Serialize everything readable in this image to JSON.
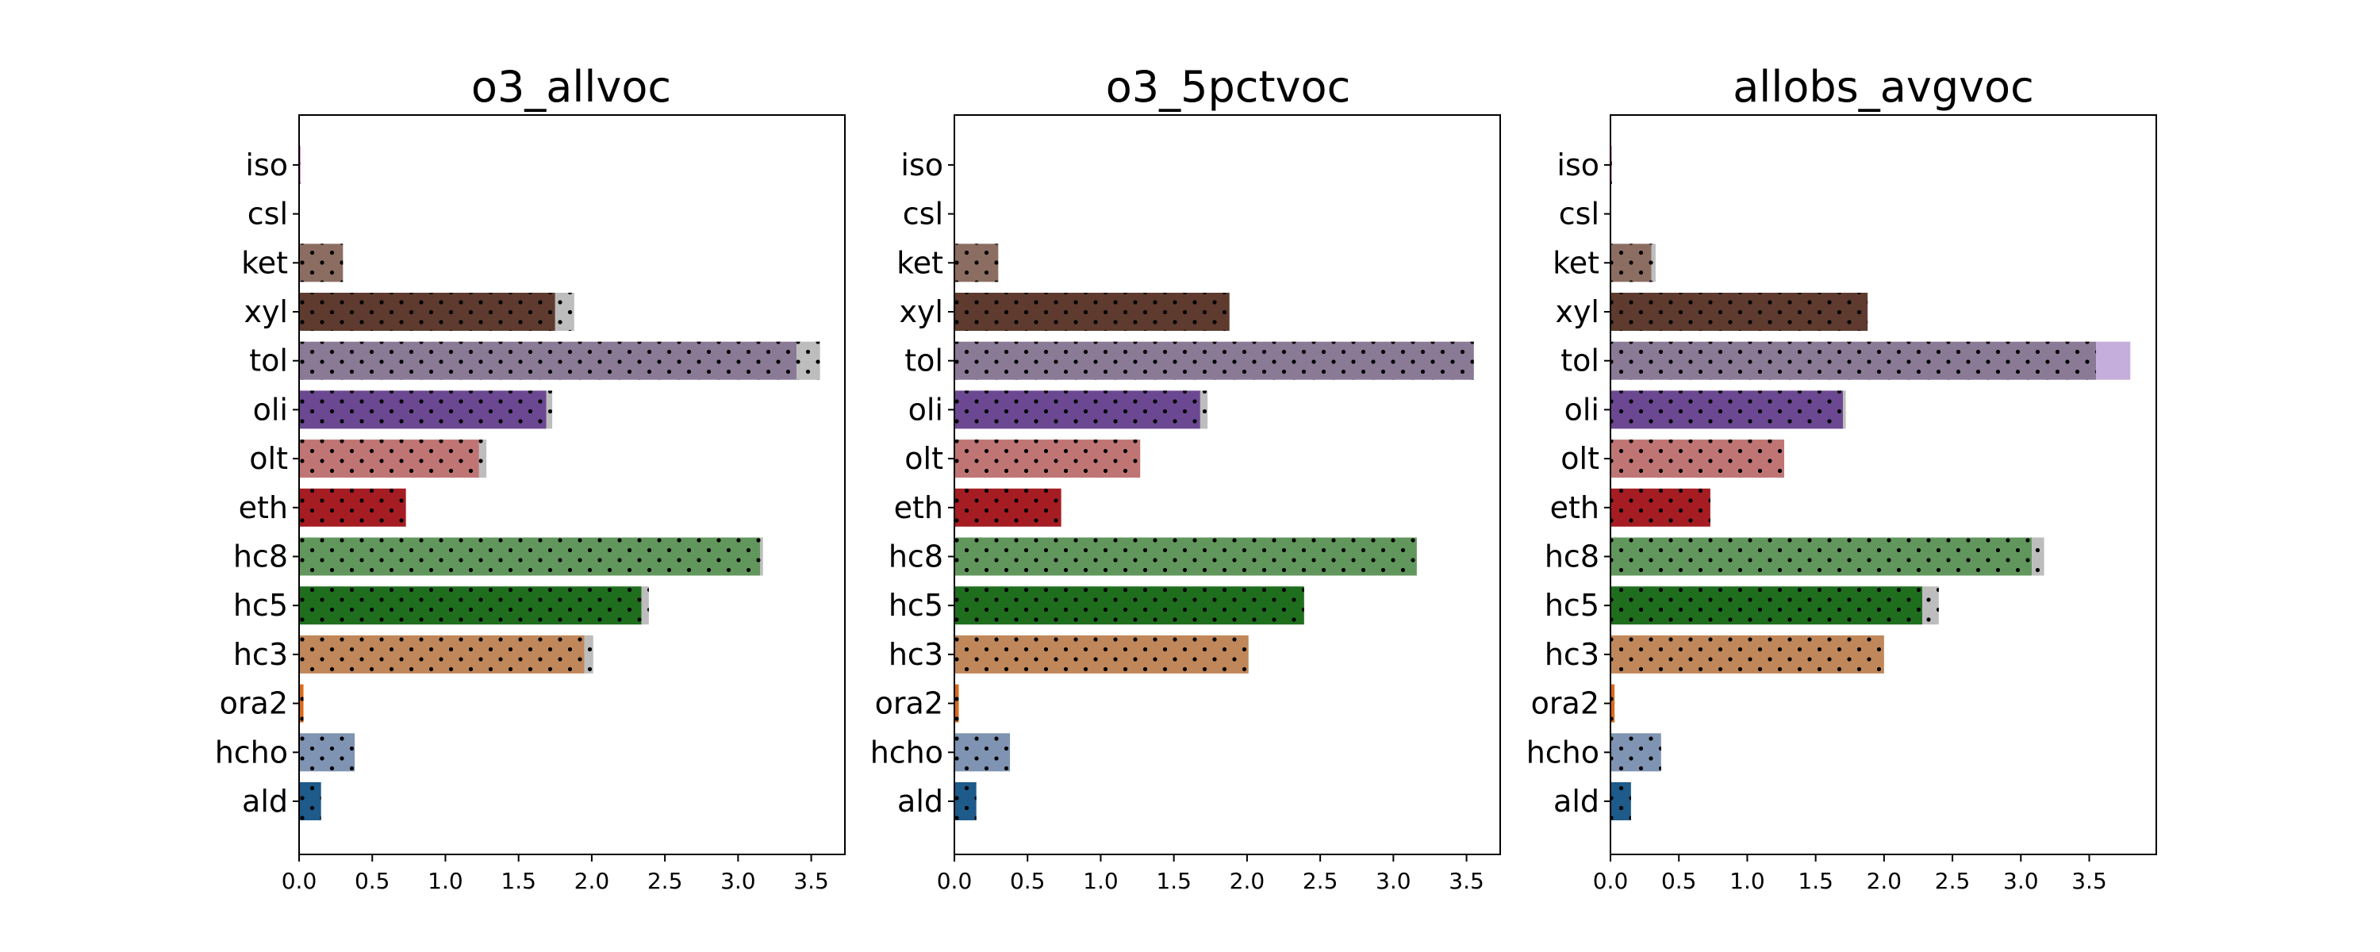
{
  "chart_data": [
    {
      "type": "bar",
      "orientation": "horizontal",
      "stacked": true,
      "title": "o3_allvoc",
      "xlabel": "",
      "ylabel": "",
      "categories": [
        "iso",
        "csl",
        "ket",
        "xyl",
        "tol",
        "oli",
        "olt",
        "eth",
        "hc8",
        "hc5",
        "hc3",
        "ora2",
        "hcho",
        "ald"
      ],
      "xlim": [
        0,
        3.73
      ],
      "xticks": [
        "0.0",
        "0.5",
        "1.0",
        "1.5",
        "2.0",
        "2.5",
        "3.0",
        "3.5"
      ],
      "series": [
        {
          "values": [
            0.01,
            0.005,
            0.3,
            1.75,
            3.4,
            1.69,
            1.23,
            0.73,
            3.15,
            2.34,
            1.95,
            0.03,
            0.38,
            0.15
          ]
        },
        {
          "values": [
            0.0,
            0.0,
            0.0,
            0.13,
            0.16,
            0.04,
            0.05,
            0.0,
            0.02,
            0.05,
            0.06,
            0.0,
            0.0,
            0.0
          ]
        }
      ]
    },
    {
      "type": "bar",
      "orientation": "horizontal",
      "stacked": true,
      "title": "o3_5pctvoc",
      "xlabel": "",
      "ylabel": "",
      "categories": [
        "iso",
        "csl",
        "ket",
        "xyl",
        "tol",
        "oli",
        "olt",
        "eth",
        "hc8",
        "hc5",
        "hc3",
        "ora2",
        "hcho",
        "ald"
      ],
      "xlim": [
        0,
        3.73
      ],
      "xticks": [
        "0.0",
        "0.5",
        "1.0",
        "1.5",
        "2.0",
        "2.5",
        "3.0",
        "3.5"
      ],
      "series": [
        {
          "values": [
            0.0,
            0.0,
            0.3,
            1.88,
            3.55,
            1.68,
            1.27,
            0.73,
            3.16,
            2.39,
            2.01,
            0.03,
            0.38,
            0.15
          ]
        },
        {
          "values": [
            0.0,
            0.0,
            0.0,
            0.0,
            0.0,
            0.05,
            0.0,
            0.0,
            0.0,
            0.0,
            0.0,
            0.0,
            0.0,
            0.0
          ]
        }
      ]
    },
    {
      "type": "bar",
      "orientation": "horizontal",
      "stacked": true,
      "title": "allobs_avgvoc",
      "xlabel": "",
      "ylabel": "",
      "categories": [
        "iso",
        "csl",
        "ket",
        "xyl",
        "tol",
        "oli",
        "olt",
        "eth",
        "hc8",
        "hc5",
        "hc3",
        "ora2",
        "hcho",
        "ald"
      ],
      "xlim": [
        0,
        3.99
      ],
      "xticks": [
        "0.0",
        "0.5",
        "1.0",
        "1.5",
        "2.0",
        "2.5",
        "3.0",
        "3.5"
      ],
      "series": [
        {
          "values": [
            0.01,
            0.005,
            0.3,
            1.88,
            3.55,
            1.7,
            1.27,
            0.73,
            3.08,
            2.28,
            2.0,
            0.03,
            0.37,
            0.15
          ]
        },
        {
          "values": [
            0.0,
            0.0,
            0.03,
            0.0,
            0.25,
            0.02,
            0.0,
            0.0,
            0.09,
            0.12,
            0.0,
            0.0,
            0.0,
            0.0
          ]
        }
      ]
    }
  ],
  "colors": {
    "iso": "#e377c2",
    "csl": "#bcbd22",
    "ket": "#8c6d62",
    "xyl": "#5e3b2e",
    "tol": "#8a7a96",
    "oli": "#6b4891",
    "olt": "#c07575",
    "eth": "#a51d22",
    "hc8": "#61975c",
    "hc5": "#1f6e1e",
    "hc3": "#c0875a",
    "ora2": "#d96a1e",
    "hcho": "#7f93b2",
    "ald": "#1e5a8a",
    "second_series_grey": "#bdbdbd",
    "second_series_tol_panel3": "#c5aedb",
    "axis": "#000000",
    "dots": "#000000"
  }
}
